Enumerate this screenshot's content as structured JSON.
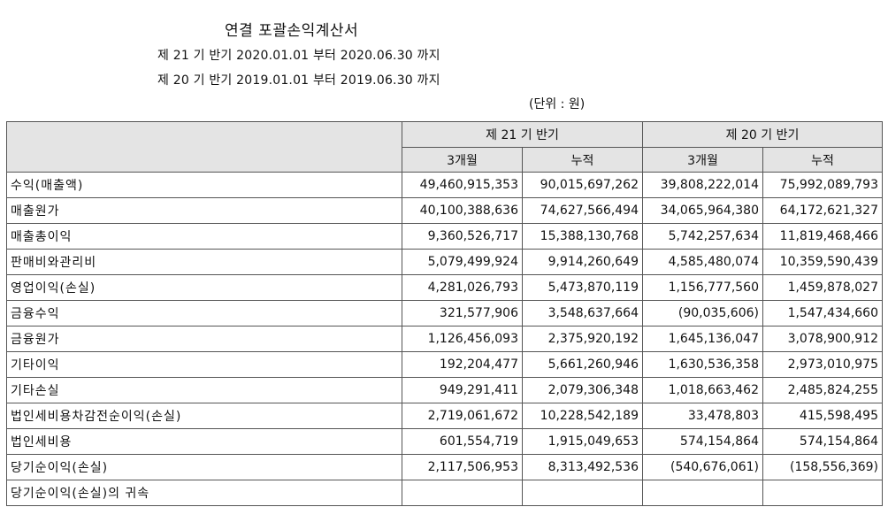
{
  "header": {
    "title": "연결 포괄손익계산서",
    "period_current": "제 21 기 반기 2020.01.01 부터 2020.06.30 까지",
    "period_prior": "제 20 기 반기 2019.01.01 부터 2019.06.30 까지",
    "unit": "(단위 : 원)"
  },
  "table": {
    "groups": [
      "제 21 기 반기",
      "제 20 기 반기"
    ],
    "subcols": [
      "3개월",
      "누적",
      "3개월",
      "누적"
    ],
    "rows": [
      {
        "label": "수익(매출액)",
        "values": [
          "49,460,915,353",
          "90,015,697,262",
          "39,808,222,014",
          "75,992,089,793"
        ]
      },
      {
        "label": "매출원가",
        "values": [
          "40,100,388,636",
          "74,627,566,494",
          "34,065,964,380",
          "64,172,621,327"
        ]
      },
      {
        "label": "매출총이익",
        "values": [
          "9,360,526,717",
          "15,388,130,768",
          "5,742,257,634",
          "11,819,468,466"
        ]
      },
      {
        "label": "판매비와관리비",
        "values": [
          "5,079,499,924",
          "9,914,260,649",
          "4,585,480,074",
          "10,359,590,439"
        ]
      },
      {
        "label": "영업이익(손실)",
        "values": [
          "4,281,026,793",
          "5,473,870,119",
          "1,156,777,560",
          "1,459,878,027"
        ]
      },
      {
        "label": "금융수익",
        "values": [
          "321,577,906",
          "3,548,637,664",
          "(90,035,606)",
          "1,547,434,660"
        ]
      },
      {
        "label": "금융원가",
        "values": [
          "1,126,456,093",
          "2,375,920,192",
          "1,645,136,047",
          "3,078,900,912"
        ]
      },
      {
        "label": "기타이익",
        "values": [
          "192,204,477",
          "5,661,260,946",
          "1,630,536,358",
          "2,973,010,975"
        ]
      },
      {
        "label": "기타손실",
        "values": [
          "949,291,411",
          "2,079,306,348",
          "1,018,663,462",
          "2,485,824,255"
        ]
      },
      {
        "label": "법인세비용차감전순이익(손실)",
        "values": [
          "2,719,061,672",
          "10,228,542,189",
          "33,478,803",
          "415,598,495"
        ]
      },
      {
        "label": "법인세비용",
        "values": [
          "601,554,719",
          "1,915,049,653",
          "574,154,864",
          "574,154,864"
        ]
      },
      {
        "label": "당기순이익(손실)",
        "values": [
          "2,117,506,953",
          "8,313,492,536",
          "(540,676,061)",
          "(158,556,369)"
        ]
      },
      {
        "label": "당기순이익(손실)의 귀속",
        "values": [
          "",
          "",
          "",
          ""
        ]
      }
    ]
  }
}
